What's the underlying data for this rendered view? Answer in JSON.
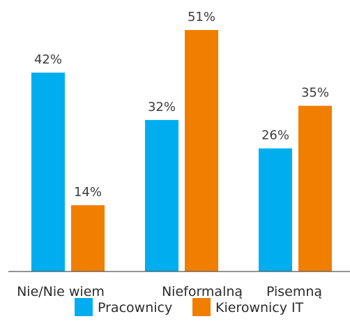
{
  "chart_data": {
    "type": "bar",
    "categories": [
      "Nie/Nie wiem",
      "Nieformalną",
      "Pisemną"
    ],
    "series": [
      {
        "name": "Pracownicy",
        "values": [
          42,
          32,
          26
        ],
        "color": "#00aeef"
      },
      {
        "name": "Kierownicy IT",
        "values": [
          14,
          51,
          35
        ],
        "color": "#f07f00"
      }
    ],
    "value_suffix": "%",
    "ylim": [
      0,
      51
    ],
    "grid": false,
    "legend_position": "bottom-center",
    "axis_color": "#555555"
  }
}
